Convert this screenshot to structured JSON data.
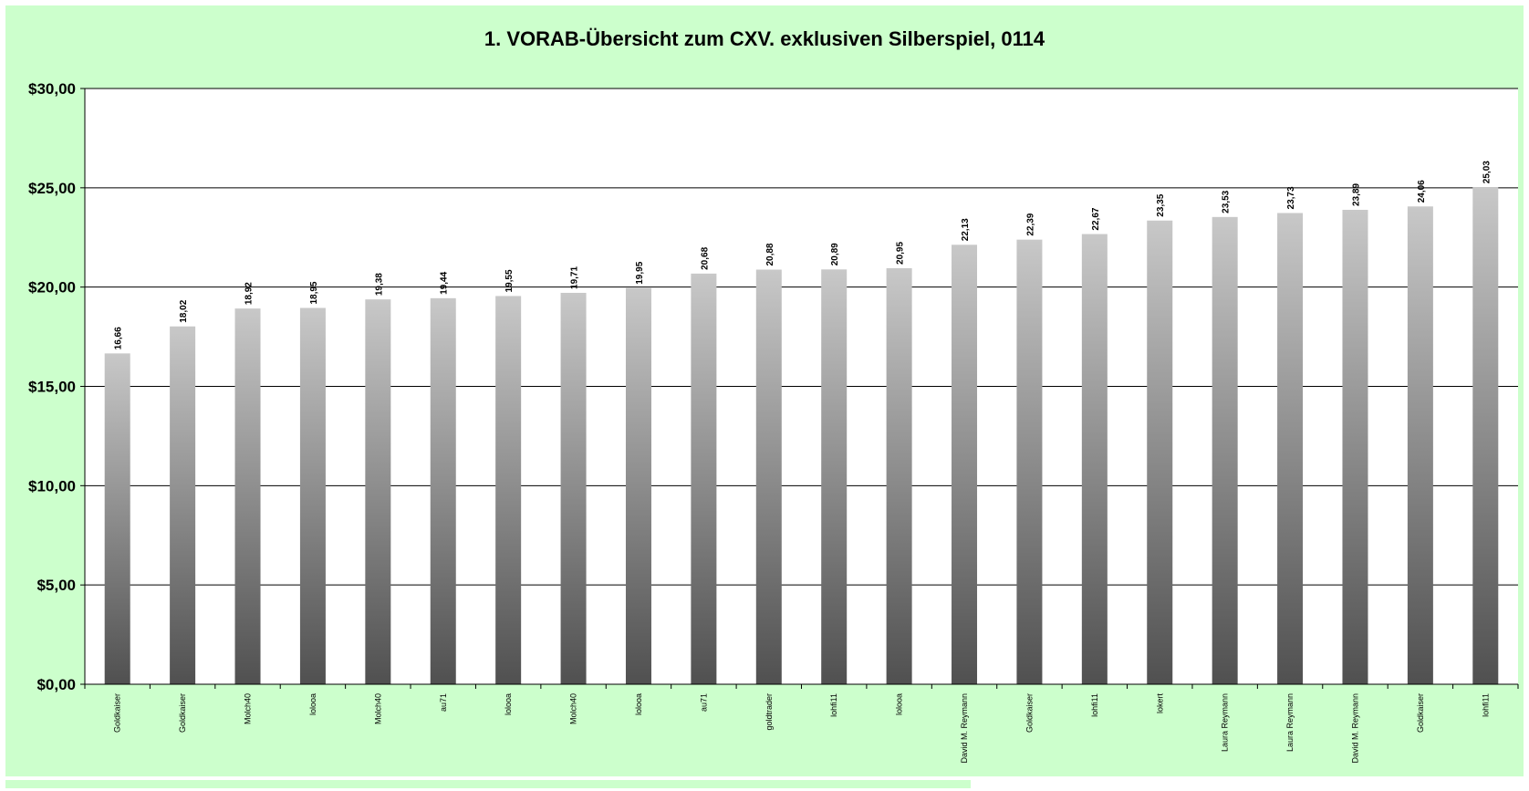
{
  "colors": {
    "background": "#ccffcc",
    "plot_area": "#ffffff",
    "bar_light": "#c8c8c8",
    "bar_dark": "#505050",
    "gridline": "#000000"
  },
  "chart_data": {
    "type": "bar",
    "title": "1. VORAB-Übersicht zum CXV. exklusiven Silberspiel, 0114",
    "xlabel": "",
    "ylabel": "",
    "ylim": [
      0,
      30
    ],
    "yticks": [
      0,
      5,
      10,
      15,
      20,
      25,
      30
    ],
    "ytick_labels": [
      "$0,00",
      "$5,00",
      "$10,00",
      "$15,00",
      "$20,00",
      "$25,00",
      "$30,00"
    ],
    "grid": true,
    "legend": "none",
    "categories": [
      "Goldkaiser",
      "Goldkaiser",
      "Molch40",
      "lolooa",
      "Molch40",
      "au71",
      "lolooa",
      "Molch40",
      "lolooa",
      "au71",
      "goldtrader",
      "lohfi11",
      "lolooa",
      "David M. Reymann",
      "Goldkaiser",
      "lohfi11",
      "lokert",
      "Laura Reymann",
      "Laura Reymann",
      "David M. Reymann",
      "Goldkaiser",
      "lohfi11"
    ],
    "values": [
      16.66,
      18.02,
      18.92,
      18.95,
      19.38,
      19.44,
      19.55,
      19.71,
      19.95,
      20.68,
      20.88,
      20.89,
      20.95,
      22.13,
      22.39,
      22.67,
      23.35,
      23.53,
      23.73,
      23.89,
      24.06,
      25.03
    ],
    "value_labels": [
      "16,66",
      "18,02",
      "18,92",
      "18,95",
      "19,38",
      "19,44",
      "19,55",
      "19,71",
      "19,95",
      "20,68",
      "20,88",
      "20,89",
      "20,95",
      "22,13",
      "22,39",
      "22,67",
      "23,35",
      "23,53",
      "23,73",
      "23,89",
      "24,06",
      "25,03"
    ]
  }
}
